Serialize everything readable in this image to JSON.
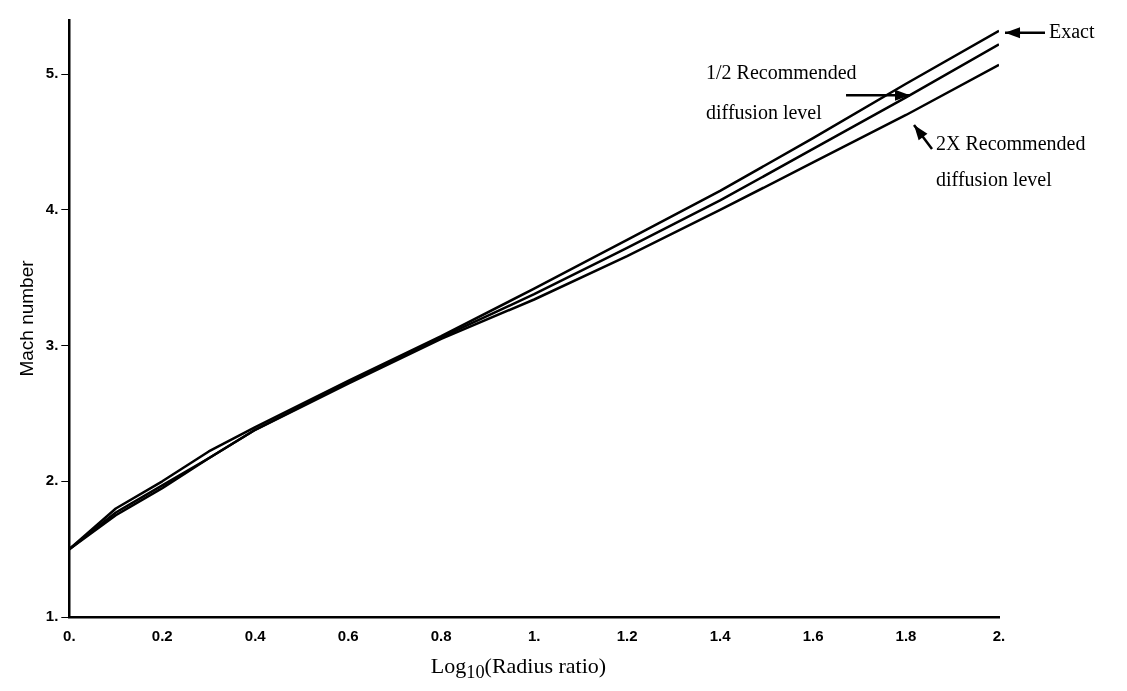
{
  "chart_data": {
    "type": "line",
    "xlabel": "Log$_{10}$(Radius ratio)",
    "ylabel": "Mach number",
    "x": [
      0,
      0.1,
      0.2,
      0.3,
      0.4,
      0.6,
      0.8,
      1.0,
      1.2,
      1.4,
      1.6,
      1.8,
      2.0
    ],
    "series": [
      {
        "name": "Exact",
        "color": "#000000",
        "values": [
          1.5,
          1.8,
          2.0,
          2.22,
          2.4,
          2.74,
          3.07,
          3.42,
          3.78,
          4.14,
          4.53,
          4.93,
          5.32
        ]
      },
      {
        "name": "1/2 Recommended diffusion level",
        "color": "#000000",
        "values": [
          1.5,
          1.77,
          1.97,
          2.17,
          2.38,
          2.73,
          3.06,
          3.38,
          3.72,
          4.07,
          4.45,
          4.83,
          5.22
        ]
      },
      {
        "name": "2X Recommended diffusion level",
        "color": "#000000",
        "values": [
          1.5,
          1.75,
          1.95,
          2.17,
          2.38,
          2.72,
          3.05,
          3.34,
          3.66,
          4.0,
          4.35,
          4.7,
          5.07
        ]
      }
    ],
    "xlim": [
      0,
      2
    ],
    "ylim": [
      1,
      5.4
    ],
    "xticks": [
      {
        "value": 0,
        "label": "0."
      },
      0.2,
      0.4,
      0.6,
      0.8,
      {
        "value": 1,
        "label": "1."
      },
      1.2,
      1.4,
      1.6,
      1.8,
      {
        "value": 2,
        "label": "2."
      }
    ],
    "yticks": [
      {
        "value": 1,
        "label": "1."
      },
      {
        "value": 2,
        "label": "2."
      },
      {
        "value": 3,
        "label": "3."
      },
      {
        "value": 4,
        "label": "4."
      },
      {
        "value": 5,
        "label": "5."
      }
    ],
    "grid": false,
    "legend": "top right",
    "marker": "none",
    "line_style": "solid"
  }
}
